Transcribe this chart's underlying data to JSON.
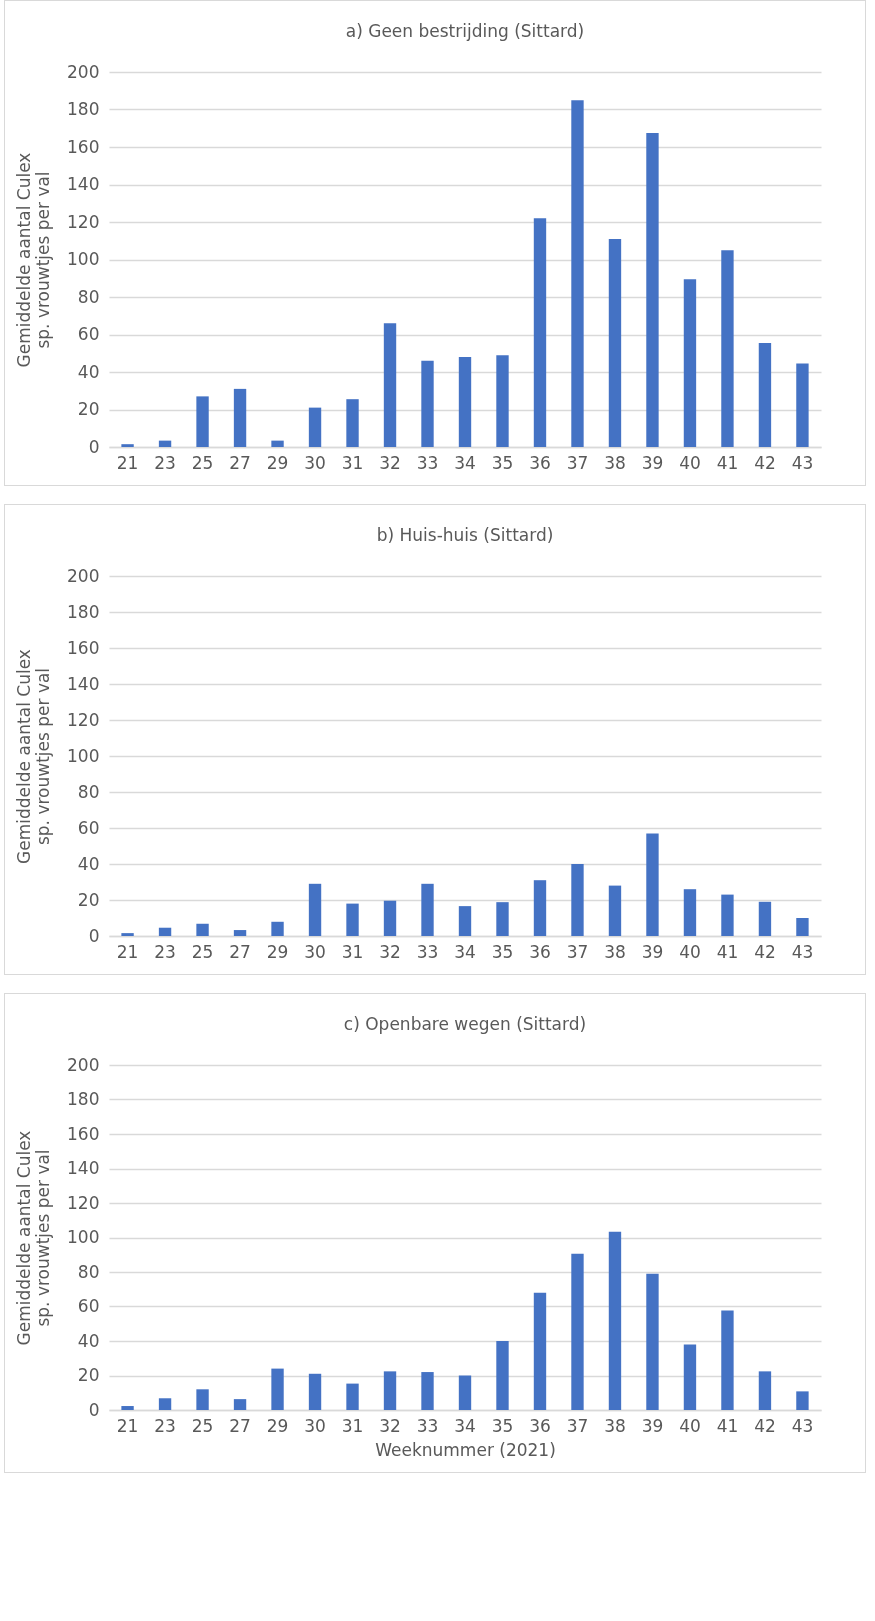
{
  "chart_data": [
    {
      "type": "bar",
      "title": "a) Geen bestrijding (Sittard)",
      "ylabel": "Gemiddelde aantal Culex sp. vrouwtjes per val",
      "categories": [
        "21",
        "23",
        "25",
        "27",
        "29",
        "30",
        "31",
        "32",
        "33",
        "34",
        "35",
        "36",
        "37",
        "38",
        "39",
        "40",
        "41",
        "42",
        "43"
      ],
      "values": [
        1.5,
        3.4,
        27,
        31,
        3.4,
        21,
        25.5,
        66,
        46,
        48,
        49,
        122,
        185,
        111,
        167.5,
        89.5,
        105,
        55.5,
        44.5
      ],
      "color": "#4472c4",
      "ylim": [
        0,
        200
      ],
      "yticks": [
        0,
        20,
        40,
        60,
        80,
        100,
        120,
        140,
        160,
        180,
        200
      ],
      "grid": "y"
    },
    {
      "type": "bar",
      "title": "b) Huis-huis (Sittard)",
      "ylabel": "Gemiddelde aantal Culex sp. vrouwtjes per val",
      "categories": [
        "21",
        "23",
        "25",
        "27",
        "29",
        "30",
        "31",
        "32",
        "33",
        "34",
        "35",
        "36",
        "37",
        "38",
        "39",
        "40",
        "41",
        "42",
        "43"
      ],
      "values": [
        1.6,
        4.6,
        6.8,
        3.3,
        7.9,
        29,
        18,
        19.6,
        29,
        16.6,
        18.8,
        31,
        40,
        28,
        57,
        26,
        23,
        19,
        10
      ],
      "color": "#4472c4",
      "ylim": [
        0,
        200
      ],
      "yticks": [
        0,
        20,
        40,
        60,
        80,
        100,
        120,
        140,
        160,
        180,
        200
      ],
      "grid": "y"
    },
    {
      "type": "bar",
      "title": "c) Openbare wegen (Sittard)",
      "xlabel": "Weeknummer (2021)",
      "ylabel": "Gemiddelde aantal Culex sp. vrouwtjes per val",
      "categories": [
        "21",
        "23",
        "25",
        "27",
        "29",
        "30",
        "31",
        "32",
        "33",
        "34",
        "35",
        "36",
        "37",
        "38",
        "39",
        "40",
        "41",
        "42",
        "43"
      ],
      "values": [
        2.3,
        6.8,
        12,
        6.3,
        24,
        21,
        15.3,
        22.4,
        22,
        20,
        40,
        68,
        90.6,
        103.4,
        79,
        38,
        57.7,
        22.4,
        10.8
      ],
      "color": "#4472c4",
      "ylim": [
        0,
        200
      ],
      "yticks": [
        0,
        20,
        40,
        60,
        80,
        100,
        120,
        140,
        160,
        180,
        200
      ],
      "grid": "y"
    }
  ]
}
